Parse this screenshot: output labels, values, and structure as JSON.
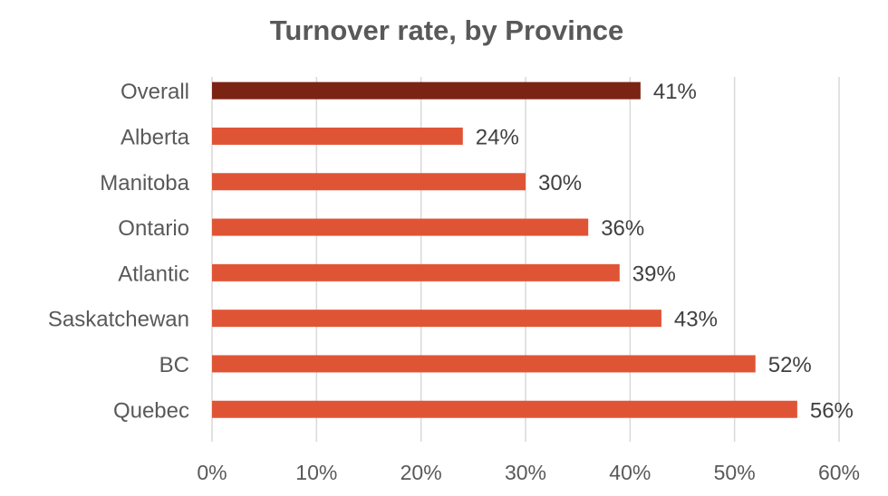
{
  "chart_data": {
    "type": "bar",
    "orientation": "horizontal",
    "title": "Turnover rate, by Province",
    "categories": [
      "Overall",
      "Alberta",
      "Manitoba",
      "Ontario",
      "Atlantic",
      "Saskatchewan",
      "BC",
      "Quebec"
    ],
    "values": [
      41,
      24,
      30,
      36,
      39,
      43,
      52,
      56
    ],
    "value_labels": [
      "41%",
      "24%",
      "30%",
      "36%",
      "39%",
      "43%",
      "52%",
      "56%"
    ],
    "xlim": [
      0,
      60
    ],
    "x_ticks": [
      "0%",
      "10%",
      "20%",
      "30%",
      "40%",
      "50%",
      "60%"
    ],
    "grid": "vertical",
    "legend": "none",
    "colors": {
      "highlight": "#7B2413",
      "bars": "#E05436",
      "grid": "#D9D9D9"
    }
  }
}
